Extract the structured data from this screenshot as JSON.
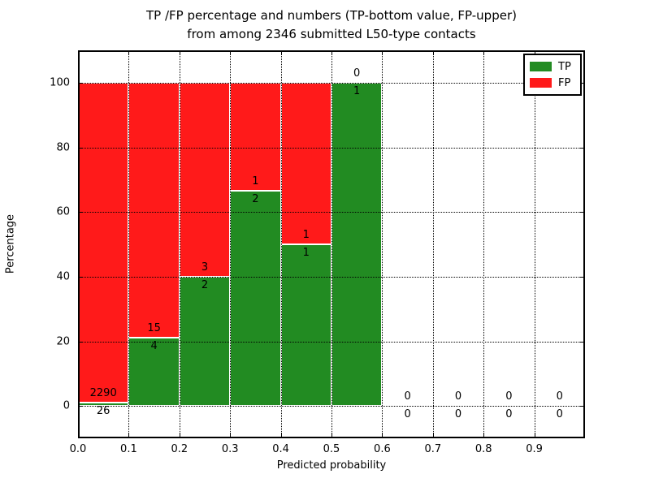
{
  "chart_data": {
    "type": "bar",
    "stacked": true,
    "title_line1": "TP /FP percentage and numbers (TP-bottom value, FP-upper)",
    "title_line2": "from among 2346 submitted L50-type contacts",
    "xlabel": "Predicted probability",
    "ylabel": "Percentage",
    "total_contacts": 2346,
    "xlim": [
      0.0,
      1.0
    ],
    "ylim": [
      -10,
      110
    ],
    "grid": "dotted",
    "legend_position": "upper right",
    "bin_width": 0.1,
    "xticks": [
      {
        "label": "0.0",
        "value": 0.0
      },
      {
        "label": "0.1",
        "value": 0.1
      },
      {
        "label": "0.2",
        "value": 0.2
      },
      {
        "label": "0.3",
        "value": 0.3
      },
      {
        "label": "0.4",
        "value": 0.4
      },
      {
        "label": "0.5",
        "value": 0.5
      },
      {
        "label": "0.6",
        "value": 0.6
      },
      {
        "label": "0.7",
        "value": 0.7
      },
      {
        "label": "0.8",
        "value": 0.8
      },
      {
        "label": "0.9",
        "value": 0.9
      }
    ],
    "yticks": [
      {
        "label": "0",
        "value": 0
      },
      {
        "label": "20",
        "value": 20
      },
      {
        "label": "40",
        "value": 40
      },
      {
        "label": "60",
        "value": 60
      },
      {
        "label": "80",
        "value": 80
      },
      {
        "label": "100",
        "value": 100
      }
    ],
    "series": [
      {
        "name": "TP",
        "color": "#228b22"
      },
      {
        "name": "FP",
        "color": "#ff1a1a"
      }
    ],
    "edge_color": "#ffffff",
    "bins": [
      {
        "x_start": 0.0,
        "tp": 26,
        "fp": 2290
      },
      {
        "x_start": 0.1,
        "tp": 4,
        "fp": 15
      },
      {
        "x_start": 0.2,
        "tp": 2,
        "fp": 3
      },
      {
        "x_start": 0.3,
        "tp": 2,
        "fp": 1
      },
      {
        "x_start": 0.4,
        "tp": 1,
        "fp": 1
      },
      {
        "x_start": 0.5,
        "tp": 1,
        "fp": 0
      },
      {
        "x_start": 0.6,
        "tp": 0,
        "fp": 0
      },
      {
        "x_start": 0.7,
        "tp": 0,
        "fp": 0
      },
      {
        "x_start": 0.8,
        "tp": 0,
        "fp": 0
      },
      {
        "x_start": 0.9,
        "tp": 0,
        "fp": 0
      }
    ]
  }
}
